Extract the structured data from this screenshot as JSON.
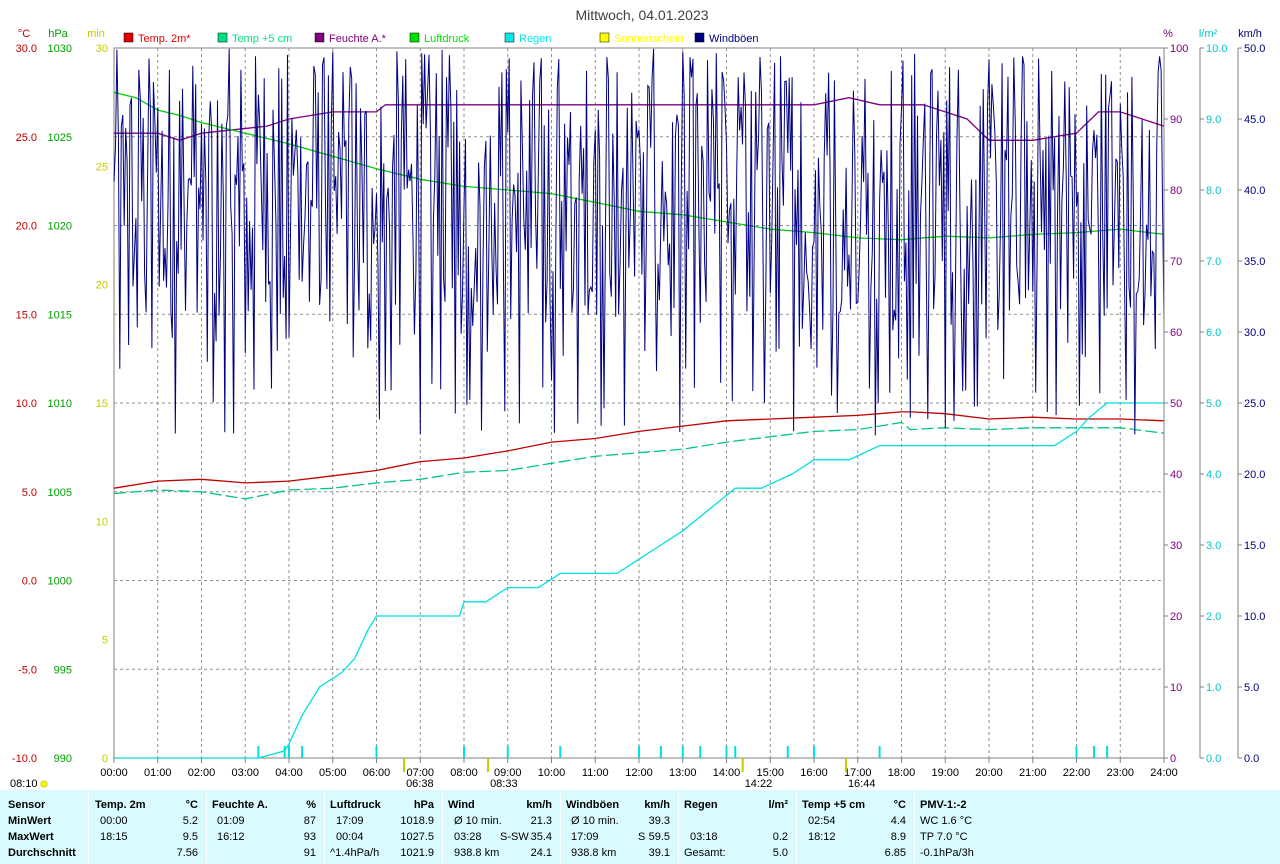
{
  "chart_data": {
    "type": "line",
    "title": "Mittwoch, 04.01.2023",
    "x_ticks": [
      "00:00",
      "01:00",
      "02:00",
      "03:00",
      "04:00",
      "05:00",
      "06:00",
      "07:00",
      "08:00",
      "09:00",
      "10:00",
      "11:00",
      "12:00",
      "13:00",
      "14:00",
      "15:00",
      "16:00",
      "17:00",
      "18:00",
      "19:00",
      "20:00",
      "21:00",
      "22:00",
      "23:00",
      "24:00"
    ],
    "axes": {
      "temp_c": {
        "unit": "°C",
        "min": -10,
        "max": 30,
        "ticks": [
          "30.0",
          "25.0",
          "20.0",
          "15.0",
          "10.0",
          "5.0",
          "0.0",
          "-5.0",
          "-10.0"
        ],
        "color": "#c00000"
      },
      "pressure_hpa": {
        "unit": "hPa",
        "min": 990,
        "max": 1030,
        "ticks": [
          "1030",
          "1025",
          "1020",
          "1015",
          "1010",
          "1005",
          "1000",
          "995",
          "990"
        ],
        "color": "#00a000"
      },
      "sunshine_min": {
        "unit": "min",
        "min": 0,
        "max": 30,
        "ticks": [
          "30",
          "25",
          "20",
          "15",
          "10",
          "5",
          "0"
        ],
        "color": "#c8c800"
      },
      "humidity_pct": {
        "unit": "%",
        "min": 0,
        "max": 100,
        "ticks": [
          "100",
          "90",
          "80",
          "70",
          "60",
          "50",
          "40",
          "30",
          "20",
          "10",
          "0"
        ],
        "color": "#800080"
      },
      "rain_lm2": {
        "unit": "l/m²",
        "min": 0,
        "max": 10,
        "ticks": [
          "10.0",
          "9.0",
          "8.0",
          "7.0",
          "6.0",
          "5.0",
          "4.0",
          "3.0",
          "2.0",
          "1.0",
          "0.0"
        ],
        "color": "#00c8c8"
      },
      "wind_kmh": {
        "unit": "km/h",
        "min": 0,
        "max": 50,
        "ticks": [
          "50.0",
          "45.0",
          "40.0",
          "35.0",
          "30.0",
          "25.0",
          "20.0",
          "15.0",
          "10.0",
          "5.0",
          "0.0"
        ],
        "color": "#000080"
      }
    },
    "legend": [
      {
        "name": "Temp. 2m*",
        "color": "#e00000"
      },
      {
        "name": "Temp +5 cm",
        "color": "#00e080"
      },
      {
        "name": "Feuchte A.*",
        "color": "#800080"
      },
      {
        "name": "Luftdruck",
        "color": "#00e000"
      },
      {
        "name": "Regen",
        "color": "#00e8e8"
      },
      {
        "name": "Sonnenschein",
        "color": "#ffff00"
      },
      {
        "name": "Windböen",
        "color": "#000080"
      }
    ],
    "series": [
      {
        "name": "Temp. 2m*",
        "axis": "temp_c",
        "color": "#c00000",
        "x": [
          0,
          1,
          2,
          3,
          4,
          5,
          6,
          7,
          8,
          9,
          10,
          11,
          12,
          13,
          14,
          15,
          16,
          17,
          18,
          18.25,
          19,
          20,
          21,
          22,
          23,
          24
        ],
        "y": [
          5.2,
          5.6,
          5.7,
          5.5,
          5.6,
          5.9,
          6.2,
          6.7,
          6.9,
          7.3,
          7.8,
          8.0,
          8.4,
          8.7,
          9.0,
          9.1,
          9.2,
          9.3,
          9.5,
          9.5,
          9.4,
          9.1,
          9.2,
          9.1,
          9.1,
          9.0
        ]
      },
      {
        "name": "Temp +5 cm",
        "axis": "temp_c",
        "color": "#00c878",
        "x": [
          0,
          1,
          2,
          3,
          4,
          5,
          6,
          7,
          8,
          9,
          10,
          11,
          12,
          13,
          14,
          15,
          16,
          17,
          18,
          18.2,
          19,
          20,
          21,
          22,
          23,
          24
        ],
        "y": [
          4.9,
          5.1,
          5.0,
          4.6,
          5.1,
          5.2,
          5.5,
          5.7,
          6.1,
          6.2,
          6.6,
          7.0,
          7.2,
          7.4,
          7.8,
          8.1,
          8.4,
          8.5,
          8.9,
          8.5,
          8.6,
          8.5,
          8.6,
          8.6,
          8.6,
          8.3
        ]
      },
      {
        "name": "Feuchte A.*",
        "axis": "humidity_pct",
        "color": "#800080",
        "x": [
          0,
          1,
          1.5,
          2,
          3.5,
          4,
          5,
          6,
          6.2,
          7,
          8,
          9,
          10,
          11,
          12,
          13,
          14,
          15,
          16,
          16.8,
          17.5,
          18.5,
          19.5,
          20,
          21,
          22,
          22.5,
          23,
          24
        ],
        "y": [
          88,
          88,
          87,
          88,
          89,
          90,
          91,
          91,
          92,
          92,
          92,
          92,
          92,
          92,
          92,
          92,
          92,
          92,
          92,
          93,
          92,
          92,
          90,
          87,
          87,
          88,
          91,
          91,
          89
        ]
      },
      {
        "name": "Luftdruck",
        "axis": "pressure_hpa",
        "color": "#00d000",
        "x": [
          0,
          0.5,
          1,
          1.5,
          2,
          3,
          4,
          5,
          6,
          7,
          8,
          9,
          10,
          11,
          12,
          13,
          14,
          15,
          16,
          17,
          18,
          19,
          20,
          21,
          22,
          23,
          24
        ],
        "y": [
          1027.5,
          1027.2,
          1026.5,
          1026.2,
          1025.8,
          1025.2,
          1024.6,
          1023.9,
          1023.2,
          1022.6,
          1022.2,
          1022.0,
          1021.8,
          1021.3,
          1020.8,
          1020.6,
          1020.2,
          1019.8,
          1019.6,
          1019.3,
          1019.2,
          1019.4,
          1019.3,
          1019.5,
          1019.6,
          1019.8,
          1019.5
        ]
      },
      {
        "name": "Regen",
        "axis": "rain_lm2",
        "color": "#00e0e0",
        "x": [
          0,
          3.3,
          3.9,
          4.0,
          4.3,
          4.7,
          5.2,
          5.5,
          5.8,
          6.0,
          6.4,
          7,
          7.9,
          8.0,
          8.5,
          9.0,
          9.7,
          10.2,
          10.7,
          11.5,
          12.0,
          12.5,
          13.0,
          13.4,
          13.8,
          14.2,
          14.8,
          15.5,
          16.0,
          16.8,
          17.5,
          18.3,
          19.2,
          20.5,
          21.5,
          22.0,
          22.3,
          22.7,
          23.5,
          24
        ],
        "y": [
          0,
          0,
          0.1,
          0.2,
          0.6,
          1.0,
          1.2,
          1.4,
          1.8,
          2.0,
          2.0,
          2.0,
          2.0,
          2.2,
          2.2,
          2.4,
          2.4,
          2.6,
          2.6,
          2.6,
          2.8,
          3.0,
          3.2,
          3.4,
          3.6,
          3.8,
          3.8,
          4.0,
          4.2,
          4.2,
          4.4,
          4.4,
          4.4,
          4.4,
          4.4,
          4.6,
          4.8,
          5.0,
          5.0,
          5.0
        ]
      },
      {
        "name": "Windböen",
        "axis": "wind_kmh",
        "color": "#000080",
        "style": "dense_gusts",
        "range": [
          8,
          50
        ]
      }
    ],
    "rain_tick_times": [
      3.3,
      3.9,
      4.0,
      4.3,
      6.0,
      8.0,
      9.0,
      10.2,
      12.0,
      12.5,
      13.0,
      13.4,
      14.0,
      14.2,
      15.4,
      16.0,
      17.5,
      22.0,
      22.4,
      22.7
    ],
    "sun_markers": [
      {
        "label": "08:10",
        "pos": "left"
      },
      {
        "label": "06:38",
        "time": 6.63
      },
      {
        "label": "08:33",
        "time": 8.55
      },
      {
        "label": "14:22",
        "time": 14.37
      },
      {
        "label": "16:44",
        "time": 16.73
      }
    ]
  },
  "footer": {
    "headers": {
      "sensor": "Sensor",
      "temp2m": "Temp. 2m",
      "temp2m_unit": "°C",
      "feuchte": "Feuchte A.",
      "feuchte_unit": "%",
      "luftdruck": "Luftdruck",
      "luftdruck_unit": "hPa",
      "wind": "Wind",
      "wind_unit": "km/h",
      "boeen": "Windböen",
      "boeen_unit": "km/h",
      "regen": "Regen",
      "regen_unit": "l/m²",
      "temp5": "Temp +5 cm",
      "temp5_unit": "°C",
      "pmv": "PMV-1:-2"
    },
    "row_labels": [
      "MinWert",
      "MaxWert",
      "Durchschnitt"
    ],
    "min": {
      "temp2m_time": "00:00",
      "temp2m": "5.2",
      "feuchte_time": "01:09",
      "feuchte": "87",
      "luftdruck_time": "17:09",
      "luftdruck": "1018.9",
      "wind_label": "Ø 10 min.",
      "wind": "21.3",
      "boeen_label": "Ø 10 min.",
      "boeen": "39.3",
      "temp5_time": "02:54",
      "temp5": "4.4",
      "pmv": "WC 1.6 °C"
    },
    "max": {
      "temp2m_time": "18:15",
      "temp2m": "9.5",
      "feuchte_time": "16:12",
      "feuchte": "93",
      "luftdruck_time": "00:04",
      "luftdruck": "1027.5",
      "wind_time": "03:28",
      "wind_dir": "S-SW",
      "wind": "35.4",
      "boeen_time": "17:09",
      "boeen_dir": "S",
      "boeen": "59.5",
      "regen_time": "03:18",
      "regen": "0.2",
      "temp5_time": "18:12",
      "temp5": "8.9",
      "pmv": "TP 7.0 °C"
    },
    "avg": {
      "temp2m": "7.56",
      "feuchte": "91",
      "luftdruck_trend": "^1.4hPa/h",
      "luftdruck": "1021.9",
      "wind_dist": "938.8 km",
      "wind": "24.1",
      "boeen_dist": "938.8 km",
      "boeen": "39.1",
      "regen_label": "Gesamt:",
      "regen": "5.0",
      "temp5": "6.85",
      "pmv": "-0.1hPa/3h"
    }
  }
}
